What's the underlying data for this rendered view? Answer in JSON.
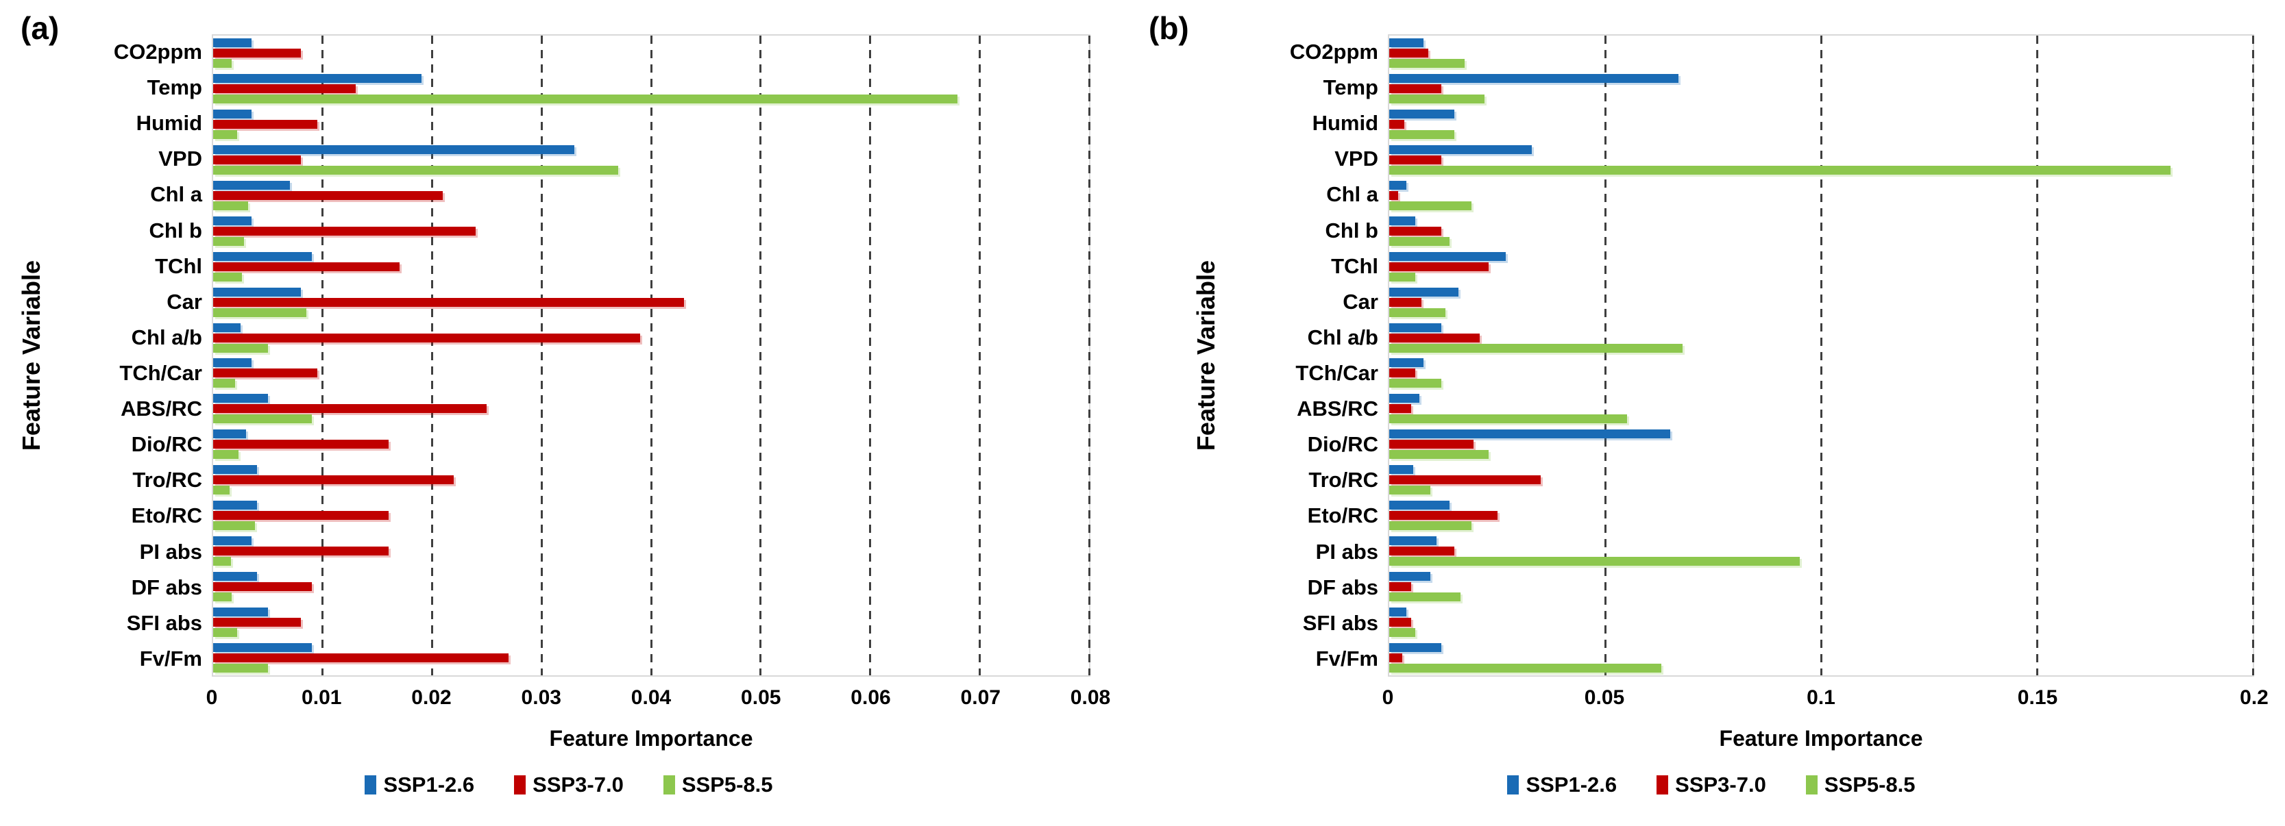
{
  "chart_data": [
    {
      "type": "bar",
      "orientation": "horizontal",
      "label": "(a)",
      "ylabel": "Feature Variable",
      "xlabel": "Feature Importance",
      "xlim": [
        0,
        0.08
      ],
      "tick_step": 0.01,
      "tick_labels": [
        "0",
        "0.01",
        "0.02",
        "0.03",
        "0.04",
        "0.05",
        "0.06",
        "0.07",
        "0.08"
      ],
      "grid": "dashed-vertical",
      "legend_position": "bottom",
      "categories": [
        "CO2ppm",
        "Temp",
        "Humid",
        "VPD",
        "Chl a",
        "Chl b",
        "TChl",
        "Car",
        "Chl a/b",
        "TCh/Car",
        "ABS/RC",
        "Dio/RC",
        "Tro/RC",
        "Eto/RC",
        "PI abs",
        "DF abs",
        "SFI abs",
        "Fv/Fm"
      ],
      "series": [
        {
          "name": "SSP1-2.6",
          "color": "#1A6BB5",
          "values": [
            0.0035,
            0.019,
            0.0035,
            0.033,
            0.007,
            0.0035,
            0.009,
            0.008,
            0.0025,
            0.0035,
            0.005,
            0.003,
            0.004,
            0.004,
            0.0035,
            0.004,
            0.005,
            0.009
          ]
        },
        {
          "name": "SSP3-7.0",
          "color": "#C00000",
          "values": [
            0.008,
            0.013,
            0.0095,
            0.008,
            0.021,
            0.024,
            0.017,
            0.043,
            0.039,
            0.0095,
            0.025,
            0.016,
            0.022,
            0.016,
            0.016,
            0.009,
            0.008,
            0.027
          ]
        },
        {
          "name": "SSP5-8.5",
          "color": "#8DC74E",
          "values": [
            0.0017,
            0.068,
            0.0022,
            0.037,
            0.0032,
            0.0028,
            0.0026,
            0.0085,
            0.005,
            0.002,
            0.009,
            0.0023,
            0.0015,
            0.0038,
            0.0016,
            0.0017,
            0.0022,
            0.005
          ]
        }
      ]
    },
    {
      "type": "bar",
      "orientation": "horizontal",
      "label": "(b)",
      "ylabel": "Feature Variable",
      "xlabel": "Feature Importance",
      "xlim": [
        0,
        0.2
      ],
      "tick_step": 0.05,
      "tick_labels": [
        "0",
        "0.05",
        "0.1",
        "0.15",
        "0.2"
      ],
      "grid": "dashed-vertical",
      "legend_position": "bottom",
      "categories": [
        "CO2ppm",
        "Temp",
        "Humid",
        "VPD",
        "Chl a",
        "Chl b",
        "TChl",
        "Car",
        "Chl a/b",
        "TCh/Car",
        "ABS/RC",
        "Dio/RC",
        "Tro/RC",
        "Eto/RC",
        "PI abs",
        "DF abs",
        "SFI abs",
        "Fv/Fm"
      ],
      "series": [
        {
          "name": "SSP1-2.6",
          "color": "#1A6BB5",
          "values": [
            0.008,
            0.067,
            0.015,
            0.033,
            0.004,
            0.006,
            0.027,
            0.016,
            0.012,
            0.008,
            0.007,
            0.065,
            0.0055,
            0.014,
            0.011,
            0.0095,
            0.004,
            0.012
          ]
        },
        {
          "name": "SSP3-7.0",
          "color": "#C00000",
          "values": [
            0.009,
            0.012,
            0.0035,
            0.012,
            0.002,
            0.012,
            0.023,
            0.0075,
            0.021,
            0.006,
            0.005,
            0.0195,
            0.035,
            0.025,
            0.015,
            0.005,
            0.005,
            0.003
          ]
        },
        {
          "name": "SSP5-8.5",
          "color": "#8DC74E",
          "values": [
            0.0175,
            0.022,
            0.015,
            0.181,
            0.019,
            0.014,
            0.006,
            0.013,
            0.068,
            0.012,
            0.055,
            0.023,
            0.0095,
            0.019,
            0.095,
            0.0165,
            0.006,
            0.063
          ]
        }
      ]
    }
  ]
}
